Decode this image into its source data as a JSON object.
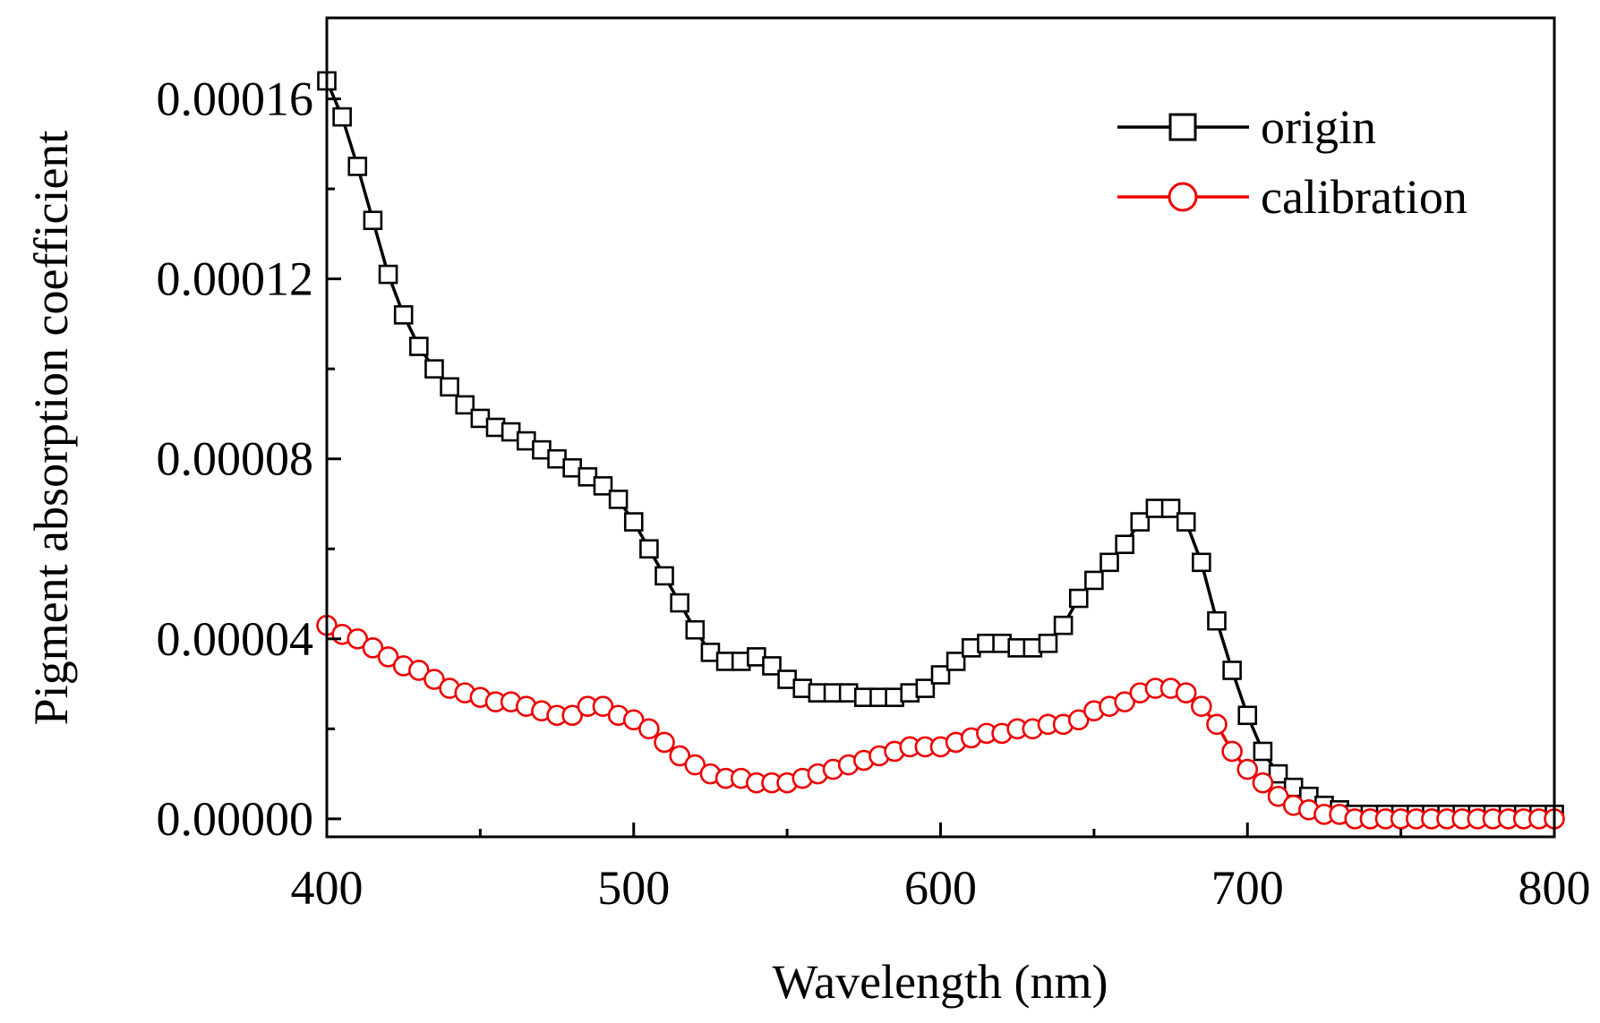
{
  "chart_data": {
    "type": "line",
    "title": "",
    "xlabel": "Wavelength (nm)",
    "ylabel": "Pigment absorption coefficient",
    "xlim": [
      400,
      800
    ],
    "ylim": [
      -4e-06,
      0.000178
    ],
    "xticks": [
      400,
      500,
      600,
      700,
      800
    ],
    "xtick_labels": [
      "400",
      "500",
      "600",
      "700",
      "800"
    ],
    "yticks": [
      0,
      4e-05,
      8e-05,
      0.00012,
      0.00016
    ],
    "ytick_labels": [
      "0.00000",
      "0.00004",
      "0.00008",
      "0.00012",
      "0.00016"
    ],
    "grid": false,
    "legend": "top-right",
    "x": [
      400,
      405,
      410,
      415,
      420,
      425,
      430,
      435,
      440,
      445,
      450,
      455,
      460,
      465,
      470,
      475,
      480,
      485,
      490,
      495,
      500,
      505,
      510,
      515,
      520,
      525,
      530,
      535,
      540,
      545,
      550,
      555,
      560,
      565,
      570,
      575,
      580,
      585,
      590,
      595,
      600,
      605,
      610,
      615,
      620,
      625,
      630,
      635,
      640,
      645,
      650,
      655,
      660,
      665,
      670,
      675,
      680,
      685,
      690,
      695,
      700,
      705,
      710,
      715,
      720,
      725,
      730,
      735,
      740,
      745,
      750,
      755,
      760,
      765,
      770,
      775,
      780,
      785,
      790,
      795,
      800
    ],
    "series": [
      {
        "name": "origin",
        "color": "#000000",
        "marker": "square",
        "values": [
          0.000164,
          0.000156,
          0.000145,
          0.000133,
          0.000121,
          0.000112,
          0.000105,
          0.0001,
          9.6e-05,
          9.2e-05,
          8.9e-05,
          8.7e-05,
          8.6e-05,
          8.4e-05,
          8.2e-05,
          8e-05,
          7.8e-05,
          7.6e-05,
          7.4e-05,
          7.1e-05,
          6.6e-05,
          6e-05,
          5.4e-05,
          4.8e-05,
          4.2e-05,
          3.7e-05,
          3.5e-05,
          3.5e-05,
          3.6e-05,
          3.4e-05,
          3.1e-05,
          2.9e-05,
          2.8e-05,
          2.8e-05,
          2.8e-05,
          2.7e-05,
          2.7e-05,
          2.7e-05,
          2.8e-05,
          2.9e-05,
          3.2e-05,
          3.5e-05,
          3.8e-05,
          3.9e-05,
          3.9e-05,
          3.8e-05,
          3.8e-05,
          3.9e-05,
          4.3e-05,
          4.9e-05,
          5.3e-05,
          5.7e-05,
          6.1e-05,
          6.6e-05,
          6.9e-05,
          6.9e-05,
          6.6e-05,
          5.7e-05,
          4.4e-05,
          3.3e-05,
          2.3e-05,
          1.5e-05,
          1e-05,
          7e-06,
          5e-06,
          3e-06,
          2e-06,
          1e-06,
          1e-06,
          1e-06,
          1e-06,
          1e-06,
          1e-06,
          1e-06,
          1e-06,
          1e-06,
          1e-06,
          1e-06,
          1e-06,
          1e-06,
          1e-06
        ]
      },
      {
        "name": "calibration",
        "color": "#ee0000",
        "marker": "circle",
        "values": [
          4.3e-05,
          4.1e-05,
          4e-05,
          3.8e-05,
          3.6e-05,
          3.4e-05,
          3.3e-05,
          3.1e-05,
          2.9e-05,
          2.8e-05,
          2.7e-05,
          2.6e-05,
          2.6e-05,
          2.5e-05,
          2.4e-05,
          2.3e-05,
          2.3e-05,
          2.5e-05,
          2.5e-05,
          2.3e-05,
          2.2e-05,
          2e-05,
          1.7e-05,
          1.4e-05,
          1.2e-05,
          1e-05,
          9e-06,
          9e-06,
          8e-06,
          8e-06,
          8e-06,
          9e-06,
          1e-05,
          1.1e-05,
          1.2e-05,
          1.3e-05,
          1.4e-05,
          1.5e-05,
          1.6e-05,
          1.6e-05,
          1.6e-05,
          1.7e-05,
          1.8e-05,
          1.9e-05,
          1.9e-05,
          2e-05,
          2e-05,
          2.1e-05,
          2.1e-05,
          2.2e-05,
          2.4e-05,
          2.5e-05,
          2.6e-05,
          2.8e-05,
          2.9e-05,
          2.9e-05,
          2.8e-05,
          2.5e-05,
          2.1e-05,
          1.5e-05,
          1.1e-05,
          8e-06,
          5e-06,
          3e-06,
          2e-06,
          1e-06,
          1e-06,
          0.0,
          0.0,
          0.0,
          0.0,
          0.0,
          0.0,
          0.0,
          0.0,
          0.0,
          0.0,
          0.0,
          0.0,
          0.0,
          0.0
        ]
      }
    ]
  }
}
